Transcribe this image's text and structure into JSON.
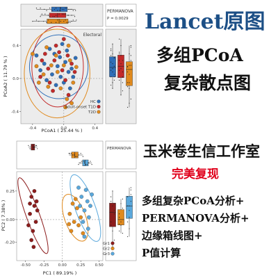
{
  "promo": {
    "title": "Lancet原图",
    "line1": "多组PCoA",
    "line2": "复杂散点图",
    "studio": "玉米卷生信工作室",
    "perfect": "完美复现",
    "features": [
      "多组复杂PCoA分析+",
      "PERMANOVA分析+",
      "边缘箱线图+",
      "P值计算"
    ]
  },
  "colors": {
    "blue": "#2f6fb8",
    "red": "#c22a2a",
    "orange": "#e08a1e",
    "darkred": "#8c1c1c",
    "lightblue": "#5aa8dc",
    "panel_bg": "#ececec",
    "title_blue": "#1c4f86",
    "accent_red": "#e0001b"
  },
  "chart_data": [
    {
      "type": "scatter",
      "title": "",
      "xlabel": "PCoA1 ( 25.44 % )",
      "ylabel": "PCoA2 ( 11.79 % )",
      "xlim": [
        -0.55,
        0.5
      ],
      "ylim": [
        -0.55,
        0.6
      ],
      "xticks": [
        -0.4,
        0.0,
        0.4
      ],
      "yticks": [
        0.4,
        0.0,
        -0.4
      ],
      "annotation": "Electoral",
      "permanova": {
        "label": "PERMANOVA",
        "p": "P = 0.0029"
      },
      "legend_position": "bottom-right",
      "grid": false,
      "series": [
        {
          "name": "HC",
          "color": "#2f6fb8",
          "points": [
            [
              -0.18,
              0.36
            ],
            [
              -0.12,
              0.3
            ],
            [
              -0.05,
              0.26
            ],
            [
              0.04,
              0.34
            ],
            [
              -0.25,
              0.18
            ],
            [
              -0.08,
              0.15
            ],
            [
              0.02,
              0.2
            ],
            [
              0.1,
              0.12
            ],
            [
              -0.15,
              0.05
            ],
            [
              -0.04,
              0.02
            ],
            [
              0.06,
              0.08
            ],
            [
              -0.22,
              -0.02
            ],
            [
              -0.1,
              -0.08
            ],
            [
              0.0,
              -0.05
            ],
            [
              0.12,
              0.02
            ],
            [
              -0.3,
              0.1
            ],
            [
              -0.02,
              0.42
            ],
            [
              0.15,
              0.25
            ],
            [
              -0.35,
              0.28
            ],
            [
              0.08,
              -0.12
            ]
          ]
        },
        {
          "name": "Adult-onset T1D",
          "color": "#c22a2a",
          "points": [
            [
              -0.28,
              0.22
            ],
            [
              -0.2,
              0.12
            ],
            [
              -0.12,
              0.22
            ],
            [
              -0.02,
              0.1
            ],
            [
              0.05,
              0.28
            ],
            [
              -0.18,
              -0.05
            ],
            [
              -0.06,
              0.32
            ],
            [
              0.1,
              0.18
            ],
            [
              -0.3,
              0.02
            ],
            [
              0.02,
              -0.02
            ],
            [
              -0.1,
              0.4
            ],
            [
              0.14,
              0.08
            ],
            [
              -0.24,
              0.3
            ],
            [
              0.06,
              -0.2
            ],
            [
              -0.14,
              -0.15
            ],
            [
              0.0,
              0.48
            ]
          ]
        },
        {
          "name": "T2D",
          "color": "#e08a1e",
          "points": [
            [
              -0.35,
              0.15
            ],
            [
              -0.26,
              0.05
            ],
            [
              -0.16,
              0.16
            ],
            [
              -0.08,
              0.08
            ],
            [
              0.0,
              0.16
            ],
            [
              0.08,
              0.22
            ],
            [
              -0.2,
              -0.1
            ],
            [
              -0.04,
              -0.12
            ],
            [
              0.04,
              -0.25
            ],
            [
              0.12,
              -0.05
            ],
            [
              -0.32,
              -0.05
            ],
            [
              -0.1,
              0.28
            ],
            [
              0.02,
              -0.35
            ],
            [
              0.1,
              -0.3
            ],
            [
              -0.22,
              0.38
            ],
            [
              0.16,
              0.14
            ],
            [
              -0.4,
              0.3
            ],
            [
              0.06,
              0.4
            ]
          ]
        }
      ],
      "legend": [
        "HC",
        "Adult-onset T1D",
        "T2D"
      ]
    },
    {
      "type": "scatter",
      "title": "",
      "xlabel": "PC1 ( 89.19% )",
      "ylabel": "PC2 ( 7.38% )",
      "xlim": [
        -0.62,
        0.55
      ],
      "ylim": [
        -0.36,
        0.42
      ],
      "xticks": [
        -0.5,
        -0.25,
        0.0,
        0.25,
        0.5
      ],
      "yticks": [
        0.25,
        0.0,
        -0.2
      ],
      "annotation": "",
      "permanova": {
        "label": "PERMANOVA",
        "p": ""
      },
      "legend_position": "bottom-right",
      "grid": false,
      "series": [
        {
          "name": "Gr1",
          "color": "#8c1c1c",
          "points": [
            [
              -0.42,
              0.2
            ],
            [
              -0.38,
              0.12
            ],
            [
              -0.44,
              0.05
            ],
            [
              -0.36,
              -0.02
            ],
            [
              -0.4,
              -0.1
            ],
            [
              -0.34,
              0.08
            ],
            [
              -0.46,
              -0.05
            ],
            [
              -0.38,
              0.25
            ],
            [
              -0.42,
              -0.18
            ],
            [
              -0.35,
              0.16
            ],
            [
              -0.39,
              -0.24
            ],
            [
              -0.44,
              0.14
            ]
          ]
        },
        {
          "name": "Gr2",
          "color": "#e08a1e",
          "points": [
            [
              0.1,
              0.05
            ],
            [
              0.16,
              -0.02
            ],
            [
              0.2,
              0.1
            ],
            [
              0.12,
              -0.1
            ],
            [
              0.22,
              -0.05
            ],
            [
              0.18,
              0.18
            ],
            [
              0.25,
              0.02
            ],
            [
              0.14,
              0.14
            ],
            [
              0.28,
              -0.12
            ],
            [
              0.09,
              -0.04
            ]
          ]
        },
        {
          "name": "Gr3",
          "color": "#5aa8dc",
          "points": [
            [
              0.26,
              0.2
            ],
            [
              0.3,
              0.08
            ],
            [
              0.34,
              0.16
            ],
            [
              0.28,
              -0.02
            ],
            [
              0.36,
              0.02
            ],
            [
              0.32,
              0.26
            ],
            [
              0.38,
              0.12
            ],
            [
              0.24,
              0.12
            ],
            [
              0.4,
              0.22
            ],
            [
              0.3,
              -0.15
            ],
            [
              0.35,
              -0.08
            ],
            [
              0.22,
              0.28
            ]
          ]
        }
      ],
      "legend": [
        "Gr1",
        "Gr2",
        "Gr3"
      ]
    }
  ]
}
